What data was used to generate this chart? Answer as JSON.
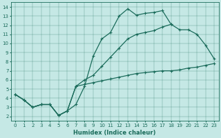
{
  "xlabel": "Humidex (Indice chaleur)",
  "xlim": [
    -0.5,
    23.5
  ],
  "ylim": [
    1.5,
    14.5
  ],
  "yticks": [
    2,
    3,
    4,
    5,
    6,
    7,
    8,
    9,
    10,
    11,
    12,
    13,
    14
  ],
  "xticks": [
    0,
    1,
    2,
    3,
    4,
    5,
    6,
    7,
    8,
    9,
    10,
    11,
    12,
    13,
    14,
    15,
    16,
    17,
    18,
    19,
    20,
    21,
    22,
    23
  ],
  "bg_color": "#c5e8e5",
  "line_color": "#1a6b5a",
  "line1": {
    "x": [
      0,
      1,
      2,
      3,
      4,
      5,
      6,
      7,
      8,
      9,
      10,
      11,
      12,
      13,
      14,
      15,
      16,
      17,
      18
    ],
    "y": [
      4.4,
      3.8,
      3.0,
      3.3,
      3.3,
      2.1,
      2.6,
      3.3,
      5.3,
      8.6,
      10.5,
      11.2,
      13.0,
      13.8,
      13.1,
      13.3,
      13.4,
      13.6,
      12.1
    ]
  },
  "line2": {
    "x": [
      0,
      1,
      2,
      3,
      4,
      5,
      6,
      7,
      8,
      9,
      10,
      11,
      12,
      13,
      14,
      15,
      16,
      17,
      18,
      19,
      20,
      21,
      22,
      23
    ],
    "y": [
      4.4,
      3.8,
      3.0,
      3.3,
      3.3,
      2.1,
      2.6,
      5.3,
      6.0,
      6.5,
      7.5,
      8.5,
      9.5,
      10.5,
      11.0,
      11.2,
      11.4,
      11.8,
      12.1,
      11.5,
      11.5,
      11.0,
      9.8,
      8.3
    ]
  },
  "line3": {
    "x": [
      0,
      1,
      2,
      3,
      4,
      5,
      6,
      7,
      8,
      9,
      10,
      11,
      12,
      13,
      14,
      15,
      16,
      17,
      18,
      19,
      20,
      21,
      22,
      23
    ],
    "y": [
      4.4,
      3.8,
      3.0,
      3.3,
      3.3,
      2.1,
      2.6,
      5.3,
      5.5,
      5.7,
      5.9,
      6.1,
      6.3,
      6.5,
      6.7,
      6.8,
      6.9,
      7.0,
      7.0,
      7.1,
      7.3,
      7.4,
      7.6,
      7.8
    ]
  },
  "tick_fontsize": 5.0,
  "xlabel_fontsize": 6.0,
  "linewidth": 0.9,
  "markersize": 2.5
}
